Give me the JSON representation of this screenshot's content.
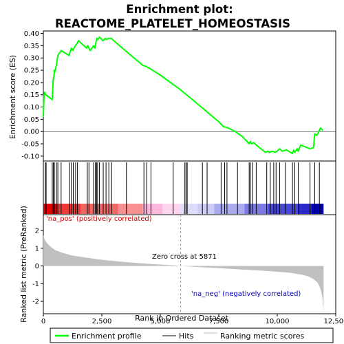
{
  "chart_data": {
    "type": "line",
    "title_line1": "Enrichment plot:",
    "title_line2": "REACTOME_PLATELET_HOMEOSTASIS",
    "xlabel": "Rank in Ordered Dataset",
    "xlim": [
      0,
      12500
    ],
    "x_ticks": [
      0,
      2500,
      5000,
      7500,
      10000,
      12500
    ],
    "x_tick_labels": [
      "0",
      "2,500",
      "5,000",
      "7,500",
      "10,000",
      "12,500"
    ],
    "es_panel": {
      "ylabel": "Enrichment score (ES)",
      "ylim": [
        -0.12,
        0.41
      ],
      "y_ticks": [
        -0.1,
        -0.05,
        0.0,
        0.05,
        0.1,
        0.15,
        0.2,
        0.25,
        0.3,
        0.35,
        0.4
      ],
      "y_tick_labels": [
        "-0.10",
        "-0.05",
        "0.00",
        "0.05",
        "0.10",
        "0.15",
        "0.20",
        "0.25",
        "0.30",
        "0.35",
        "0.40"
      ],
      "curve_color": "#00ff00",
      "x": [
        0,
        30,
        60,
        100,
        380,
        420,
        460,
        470,
        480,
        560,
        620,
        760,
        1100,
        1130,
        1200,
        1260,
        1370,
        1450,
        1500,
        1850,
        1900,
        2000,
        2150,
        2200,
        2240,
        2290,
        2330,
        2400,
        2550,
        2650,
        2700,
        2800,
        2900,
        3500,
        4250,
        4400,
        4500,
        5000,
        5871,
        6500,
        7000,
        7500,
        7700,
        7900,
        8200,
        8500,
        8800,
        8850,
        8900,
        9000,
        9100,
        9300,
        9500,
        9600,
        9650,
        9800,
        9900,
        10000,
        10100,
        10200,
        10400,
        10650,
        10700,
        10750,
        10850,
        10900,
        11000,
        11400,
        11550,
        11600,
        11700,
        11780,
        11850,
        11950
      ],
      "y": [
        0.06,
        0.15,
        0.16,
        0.15,
        0.13,
        0.21,
        0.23,
        0.25,
        0.24,
        0.27,
        0.31,
        0.33,
        0.31,
        0.32,
        0.34,
        0.33,
        0.35,
        0.36,
        0.37,
        0.34,
        0.35,
        0.33,
        0.35,
        0.34,
        0.36,
        0.38,
        0.375,
        0.385,
        0.37,
        0.38,
        0.375,
        0.38,
        0.38,
        0.33,
        0.27,
        0.265,
        0.26,
        0.23,
        0.17,
        0.12,
        0.08,
        0.04,
        0.02,
        0.015,
        0.0,
        -0.02,
        -0.05,
        -0.04,
        -0.05,
        -0.045,
        -0.055,
        -0.07,
        -0.085,
        -0.08,
        -0.085,
        -0.08,
        -0.085,
        -0.08,
        -0.07,
        -0.08,
        -0.075,
        -0.09,
        -0.075,
        -0.085,
        -0.07,
        -0.08,
        -0.055,
        -0.07,
        -0.065,
        -0.01,
        -0.015,
        0.0,
        0.015,
        0.005
      ]
    },
    "hits_panel": {
      "hit_ranks": [
        80,
        120,
        380,
        430,
        470,
        560,
        620,
        760,
        1120,
        1200,
        1280,
        1380,
        1460,
        1880,
        1950,
        2150,
        2220,
        2280,
        2320,
        2400,
        2560,
        2680,
        2800,
        2920,
        3550,
        4300,
        4420,
        4600,
        5550,
        6050,
        6100,
        6150,
        6800,
        7000,
        7600,
        7750,
        7850,
        8300,
        8800,
        8850,
        8950,
        9100,
        9550,
        9700,
        9850,
        9950,
        10100,
        10350,
        10650,
        10750,
        10900,
        11400,
        11600,
        11800
      ],
      "gradient_segments": [
        {
          "from": 0,
          "to": 600,
          "color": "#e60000"
        },
        {
          "from": 600,
          "to": 1600,
          "color": "#ef3a3a"
        },
        {
          "from": 1600,
          "to": 3200,
          "color": "#f46666"
        },
        {
          "from": 3200,
          "to": 4250,
          "color": "#f89090"
        },
        {
          "from": 4250,
          "to": 5100,
          "color": "#fbb8dc"
        },
        {
          "from": 5100,
          "to": 5871,
          "color": "#fcd4ee"
        },
        {
          "from": 5871,
          "to": 6600,
          "color": "#dcdcfa"
        },
        {
          "from": 6600,
          "to": 7300,
          "color": "#ccccf6"
        },
        {
          "from": 7300,
          "to": 8600,
          "color": "#aaaaee"
        },
        {
          "from": 8600,
          "to": 9600,
          "color": "#7a7ae2"
        },
        {
          "from": 9600,
          "to": 10900,
          "color": "#4848d6"
        },
        {
          "from": 10900,
          "to": 11450,
          "color": "#2a2ac8"
        },
        {
          "from": 11450,
          "to": 11980,
          "color": "#0000b0"
        }
      ]
    },
    "metric_panel": {
      "ylabel": "Ranked list metric (PreRanked)",
      "ylim": [
        -2.7,
        2.9
      ],
      "y_ticks": [
        -2,
        -1,
        0,
        1,
        2
      ],
      "y_tick_labels": [
        "-2",
        "-1",
        "0",
        "1",
        "2"
      ],
      "fill_color": "#c0c0c0",
      "x": [
        0,
        50,
        150,
        300,
        500,
        800,
        1200,
        1800,
        2500,
        3500,
        4500,
        5500,
        5871,
        6500,
        7500,
        8500,
        9500,
        10500,
        11000,
        11300,
        11500,
        11650,
        11750,
        11850,
        11920,
        11960,
        11980
      ],
      "y": [
        1.75,
        1.5,
        1.3,
        1.1,
        0.9,
        0.75,
        0.6,
        0.48,
        0.35,
        0.22,
        0.12,
        0.04,
        0.0,
        -0.05,
        -0.12,
        -0.2,
        -0.28,
        -0.38,
        -0.48,
        -0.58,
        -0.7,
        -0.85,
        -1.0,
        -1.3,
        -1.7,
        -2.2,
        -2.6
      ],
      "zero_cross_rank": 5871,
      "zero_cross_label": "Zero cross at 5871",
      "pos_label": "'na_pos' (positively correlated)",
      "neg_label": "'na_neg' (negatively correlated)",
      "pos_label_color": "#cc0000",
      "neg_label_color": "#0000cc"
    },
    "legend": {
      "placement": "bottom",
      "items": [
        {
          "label": "Enrichment profile",
          "color": "#00ff00",
          "kind": "thick-line"
        },
        {
          "label": "Hits",
          "color": "#000000",
          "kind": "line"
        },
        {
          "label": "Ranking metric scores",
          "color": "#c0c0c0",
          "kind": "line"
        }
      ]
    }
  }
}
